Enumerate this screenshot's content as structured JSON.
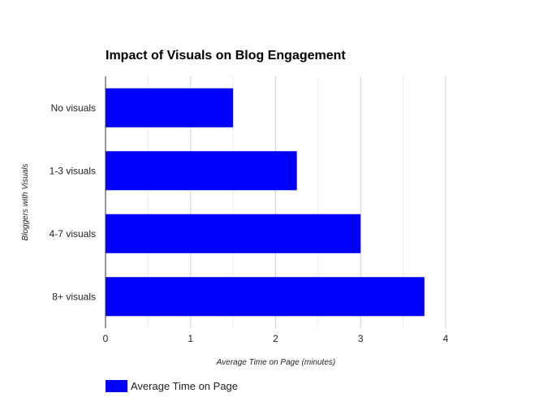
{
  "chart_data": {
    "type": "bar",
    "orientation": "horizontal",
    "title": "Impact of Visuals on Blog Engagement",
    "xlabel": "Average Time on Page (minutes)",
    "ylabel": "Bloggers with Visuals",
    "categories": [
      "No visuals",
      "1-3 visuals",
      "4-7 visuals",
      "8+ visuals"
    ],
    "series": [
      {
        "name": "Average Time on Page",
        "values": [
          1.5,
          2.25,
          3.0,
          3.75
        ],
        "color": "#0000ff"
      }
    ],
    "xlim": [
      0,
      4
    ],
    "xticks": [
      "0",
      "1",
      "2",
      "3",
      "4"
    ],
    "minor_gridlines": true,
    "grid": true,
    "legend_position": "bottom-left"
  }
}
